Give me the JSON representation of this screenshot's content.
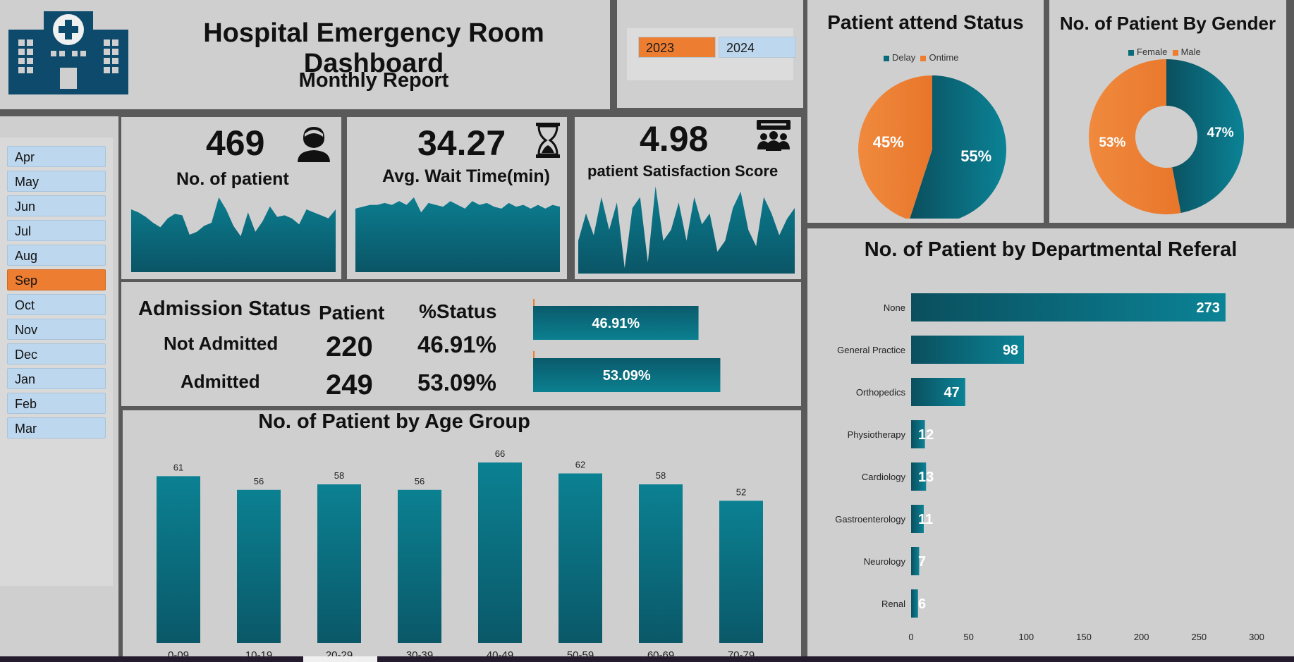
{
  "header": {
    "title": "Hospital Emergency Room Dashboard",
    "subtitle": "Monthly Report"
  },
  "years": [
    {
      "label": "2023",
      "active": true
    },
    {
      "label": "2024",
      "active": false
    }
  ],
  "months": [
    {
      "label": "Apr",
      "active": false
    },
    {
      "label": "May",
      "active": false
    },
    {
      "label": "Jun",
      "active": false
    },
    {
      "label": "Jul",
      "active": false
    },
    {
      "label": "Aug",
      "active": false
    },
    {
      "label": "Sep",
      "active": true
    },
    {
      "label": "Oct",
      "active": false
    },
    {
      "label": "Nov",
      "active": false
    },
    {
      "label": "Dec",
      "active": false
    },
    {
      "label": "Jan",
      "active": false
    },
    {
      "label": "Feb",
      "active": false
    },
    {
      "label": "Mar",
      "active": false
    }
  ],
  "kpis": {
    "patients": {
      "value": "469",
      "label": "No. of patient",
      "icon": "patient-icon"
    },
    "wait": {
      "value": "34.27",
      "label": "Avg. Wait Time(min)",
      "icon": "hourglass-icon"
    },
    "satisfaction": {
      "value": "4.98",
      "label": "patient Satisfaction Score",
      "icon": "audience-icon"
    }
  },
  "admission": {
    "heading": "Admission Status",
    "col_patient": "Patient",
    "col_status": "%Status",
    "rows": [
      {
        "label": "Not Admitted",
        "patients": "220",
        "status": "46.91%",
        "fraction": 0.4691
      },
      {
        "label": "Admitted",
        "patients": "249",
        "status": "53.09%",
        "fraction": 0.5309
      }
    ]
  },
  "colors": {
    "teal": "#0b7a8c",
    "teal_dark": "#0a4f5e",
    "orange": "#ed7d31",
    "panel": "#d0cfcf",
    "logo": "#0d4a6b"
  },
  "chart_data": [
    {
      "id": "age",
      "type": "bar",
      "title": "No. of Patient by Age Group",
      "categories": [
        "0-09",
        "10-19",
        "20-29",
        "30-39",
        "40-49",
        "50-59",
        "60-69",
        "70-79"
      ],
      "values": [
        61,
        56,
        58,
        56,
        66,
        62,
        58,
        52
      ],
      "ylim": [
        0,
        66
      ],
      "grid": false
    },
    {
      "id": "attend",
      "type": "pie",
      "title": "Patient attend Status",
      "categories": [
        "Delay",
        "Ontime"
      ],
      "values": [
        55,
        45
      ],
      "labels": [
        "55%",
        "45%"
      ],
      "legend": "top"
    },
    {
      "id": "gender",
      "type": "pie",
      "title": "No. of Patient By Gender",
      "categories": [
        "Female",
        "Male"
      ],
      "values": [
        47,
        53
      ],
      "labels": [
        "47%",
        "53%"
      ],
      "legend": "top",
      "donut": true
    },
    {
      "id": "dept",
      "type": "bar",
      "orientation": "horizontal",
      "title": "No. of Patient by Departmental Referal",
      "categories": [
        "None",
        "General Practice",
        "Orthopedics",
        "Physiotherapy",
        "Cardiology",
        "Gastroenterology",
        "Neurology",
        "Renal"
      ],
      "values": [
        273,
        98,
        47,
        12,
        13,
        11,
        7,
        6
      ],
      "xlim": [
        0,
        300
      ],
      "xticks": [
        "0",
        "50",
        "100",
        "150",
        "200",
        "250",
        "300"
      ],
      "grid": false
    },
    {
      "id": "spark-patients",
      "type": "area",
      "values": [
        42,
        40,
        37,
        33,
        30,
        36,
        39,
        38,
        25,
        27,
        31,
        33,
        50,
        42,
        31,
        24,
        40,
        27,
        34,
        44,
        37,
        38,
        36,
        32,
        42,
        40,
        38,
        36,
        42
      ]
    },
    {
      "id": "spark-wait",
      "type": "area",
      "values": [
        34,
        35,
        36,
        36,
        37,
        36,
        38,
        36,
        40,
        32,
        37,
        36,
        35,
        38,
        36,
        34,
        38,
        36,
        37,
        35,
        34,
        37,
        35,
        36,
        34,
        36,
        34,
        36,
        35
      ]
    },
    {
      "id": "spark-satisfaction",
      "type": "area",
      "values": [
        30,
        55,
        35,
        70,
        40,
        65,
        5,
        60,
        70,
        10,
        80,
        30,
        40,
        65,
        30,
        70,
        45,
        55,
        20,
        30,
        60,
        75,
        40,
        25,
        70,
        55,
        35,
        50,
        60
      ]
    }
  ]
}
